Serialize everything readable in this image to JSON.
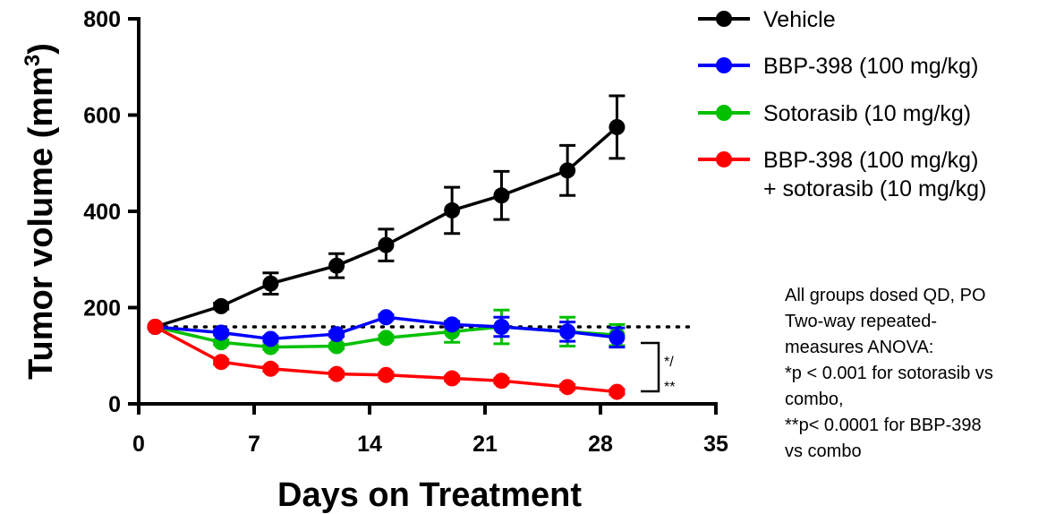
{
  "chart_data": {
    "type": "line",
    "title": "",
    "xlabel": "Days on Treatment",
    "ylabel": "Tumor volume (mm",
    "ylabel_superscript": "3",
    "ylabel_suffix": ")",
    "xlim": [
      0,
      35
    ],
    "ylim": [
      0,
      800
    ],
    "xticks": [
      0,
      7,
      14,
      21,
      28,
      35
    ],
    "yticks": [
      0,
      200,
      400,
      600,
      800
    ],
    "grid": false,
    "legend_position": "top-right",
    "reference_line": {
      "y": 160,
      "style": "dotted"
    },
    "series": [
      {
        "name": "Vehicle",
        "color": "#000000",
        "x": [
          1,
          5,
          8,
          12,
          15,
          19,
          22,
          26,
          29
        ],
        "y": [
          160,
          203,
          250,
          287,
          330,
          402,
          433,
          485,
          575
        ],
        "error": [
          0,
          6,
          22,
          25,
          33,
          48,
          50,
          52,
          65
        ]
      },
      {
        "name": "BBP-398 (100 mg/kg)",
        "color": "#0000ff",
        "x": [
          1,
          5,
          8,
          12,
          15,
          19,
          22,
          26,
          29
        ],
        "y": [
          160,
          148,
          135,
          145,
          180,
          165,
          160,
          150,
          138
        ],
        "error": [
          0,
          5,
          5,
          5,
          5,
          5,
          20,
          20,
          20
        ]
      },
      {
        "name": "Sotorasib (10 mg/kg)",
        "color": "#00c000",
        "x": [
          1,
          5,
          8,
          12,
          15,
          19,
          22,
          26,
          29
        ],
        "y": [
          160,
          128,
          118,
          120,
          137,
          150,
          160,
          150,
          143
        ],
        "error": [
          0,
          5,
          5,
          5,
          5,
          22,
          35,
          30,
          22
        ]
      },
      {
        "name_lines": [
          "BBP-398 (100 mg/kg)",
          "+ sotorasib (10 mg/kg)"
        ],
        "color": "#ff0000",
        "x": [
          1,
          5,
          8,
          12,
          15,
          19,
          22,
          26,
          29
        ],
        "y": [
          160,
          87,
          73,
          62,
          60,
          53,
          48,
          35,
          25
        ],
        "error": [
          0,
          5,
          5,
          5,
          5,
          5,
          5,
          5,
          5
        ]
      }
    ],
    "significance_label_lines": [
      "*/",
      "**"
    ],
    "annotation_lines": [
      "All groups dosed QD, PO",
      "Two-way repeated-",
      "measures ANOVA:",
      "*p < 0.001 for sotorasib vs",
      "combo,",
      "**p< 0.0001 for BBP-398",
      "vs combo"
    ]
  }
}
